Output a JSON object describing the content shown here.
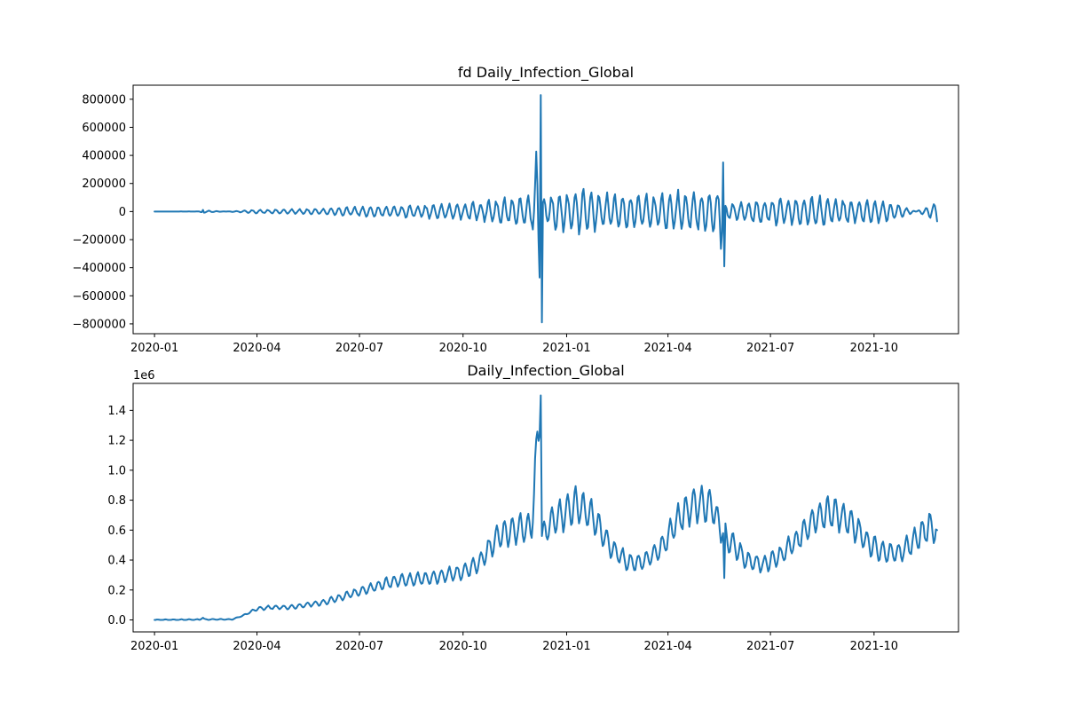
{
  "chart_data": [
    {
      "type": "line",
      "title": "fd Daily_Infection_Global",
      "xlabel": "",
      "ylabel": "",
      "x_range": [
        "2020-01-01",
        "2021-11-26"
      ],
      "xlim": [
        "2019-12-13",
        "2021-12-15"
      ],
      "ylim": [
        -870000,
        900000
      ],
      "x_ticks": [
        "2020-01",
        "2020-04",
        "2020-07",
        "2020-10",
        "2021-01",
        "2021-04",
        "2021-07",
        "2021-10"
      ],
      "y_ticks": [
        -800000,
        -600000,
        -400000,
        -200000,
        0,
        200000,
        400000,
        600000,
        800000
      ],
      "y_tick_labels": [
        "−800000",
        "−600000",
        "−400000",
        "−200000",
        "0",
        "200000",
        "400000",
        "600000",
        "800000"
      ],
      "offset_label": "",
      "grid": false,
      "series": [
        {
          "color": "#1f77b4",
          "points": [
            [
              "2020-01-01",
              0
            ],
            [
              "2020-02-10",
              500
            ],
            [
              "2020-02-13",
              12000
            ],
            [
              "2020-02-15",
              -8000
            ],
            [
              "2020-03-15",
              5000
            ],
            [
              "2020-04-01",
              15000
            ],
            [
              "2020-05-01",
              18000
            ],
            [
              "2020-06-01",
              25000
            ],
            [
              "2020-07-01",
              38000
            ],
            [
              "2020-08-01",
              45000
            ],
            [
              "2020-09-01",
              55000
            ],
            [
              "2020-10-01",
              62000
            ],
            [
              "2020-11-01",
              95000
            ],
            [
              "2020-12-01",
              150000
            ],
            [
              "2020-12-09",
              830000
            ],
            [
              "2020-12-10",
              -790000
            ],
            [
              "2020-12-11",
              120000
            ],
            [
              "2021-01-10",
              175000
            ],
            [
              "2021-02-15",
              130000
            ],
            [
              "2021-03-15",
              140000
            ],
            [
              "2021-04-15",
              170000
            ],
            [
              "2021-05-15",
              160000
            ],
            [
              "2021-05-20",
              350000
            ],
            [
              "2021-05-21",
              -390000
            ],
            [
              "2021-05-22",
              60000
            ],
            [
              "2021-06-15",
              90000
            ],
            [
              "2021-07-15",
              110000
            ],
            [
              "2021-08-15",
              120000
            ],
            [
              "2021-09-15",
              95000
            ],
            [
              "2021-10-15",
              85000
            ],
            [
              "2021-11-26",
              -70000
            ]
          ]
        }
      ]
    },
    {
      "type": "line",
      "title": "Daily_Infection_Global",
      "xlabel": "",
      "ylabel": "",
      "x_range": [
        "2020-01-01",
        "2021-11-26"
      ],
      "xlim": [
        "2019-12-13",
        "2021-12-15"
      ],
      "ylim": [
        -80000,
        1580000
      ],
      "x_ticks": [
        "2020-01",
        "2020-04",
        "2020-07",
        "2020-10",
        "2021-01",
        "2021-04",
        "2021-07",
        "2021-10"
      ],
      "y_ticks": [
        0,
        200000,
        400000,
        600000,
        800000,
        1000000,
        1200000,
        1400000
      ],
      "y_tick_labels": [
        "0.0",
        "0.2",
        "0.4",
        "0.6",
        "0.8",
        "1.0",
        "1.2",
        "1.4"
      ],
      "offset_label": "1e6",
      "grid": false,
      "series": [
        {
          "color": "#1f77b4",
          "points": [
            [
              "2020-01-01",
              0
            ],
            [
              "2020-02-10",
              2000
            ],
            [
              "2020-02-13",
              15000
            ],
            [
              "2020-02-15",
              3000
            ],
            [
              "2020-03-10",
              4000
            ],
            [
              "2020-03-20",
              30000
            ],
            [
              "2020-04-01",
              75000
            ],
            [
              "2020-04-15",
              85000
            ],
            [
              "2020-05-01",
              85000
            ],
            [
              "2020-06-01",
              120000
            ],
            [
              "2020-07-01",
              190000
            ],
            [
              "2020-08-01",
              260000
            ],
            [
              "2020-09-01",
              280000
            ],
            [
              "2020-10-01",
              320000
            ],
            [
              "2020-10-15",
              380000
            ],
            [
              "2020-11-01",
              560000
            ],
            [
              "2020-11-15",
              600000
            ],
            [
              "2020-12-01",
              620000
            ],
            [
              "2020-12-09",
              1500000
            ],
            [
              "2020-12-10",
              560000
            ],
            [
              "2020-12-20",
              660000
            ],
            [
              "2021-01-10",
              770000
            ],
            [
              "2021-01-25",
              680000
            ],
            [
              "2021-02-10",
              480000
            ],
            [
              "2021-02-25",
              380000
            ],
            [
              "2021-03-10",
              390000
            ],
            [
              "2021-03-25",
              470000
            ],
            [
              "2021-04-10",
              670000
            ],
            [
              "2021-04-25",
              780000
            ],
            [
              "2021-05-10",
              760000
            ],
            [
              "2021-05-20",
              580000
            ],
            [
              "2021-05-21",
              280000
            ],
            [
              "2021-05-22",
              560000
            ],
            [
              "2021-06-10",
              400000
            ],
            [
              "2021-06-25",
              370000
            ],
            [
              "2021-07-10",
              430000
            ],
            [
              "2021-07-25",
              540000
            ],
            [
              "2021-08-10",
              680000
            ],
            [
              "2021-08-25",
              720000
            ],
            [
              "2021-09-10",
              660000
            ],
            [
              "2021-09-25",
              520000
            ],
            [
              "2021-10-10",
              450000
            ],
            [
              "2021-10-25",
              450000
            ],
            [
              "2021-11-10",
              560000
            ],
            [
              "2021-11-20",
              630000
            ],
            [
              "2021-11-26",
              600000
            ]
          ]
        }
      ]
    }
  ]
}
